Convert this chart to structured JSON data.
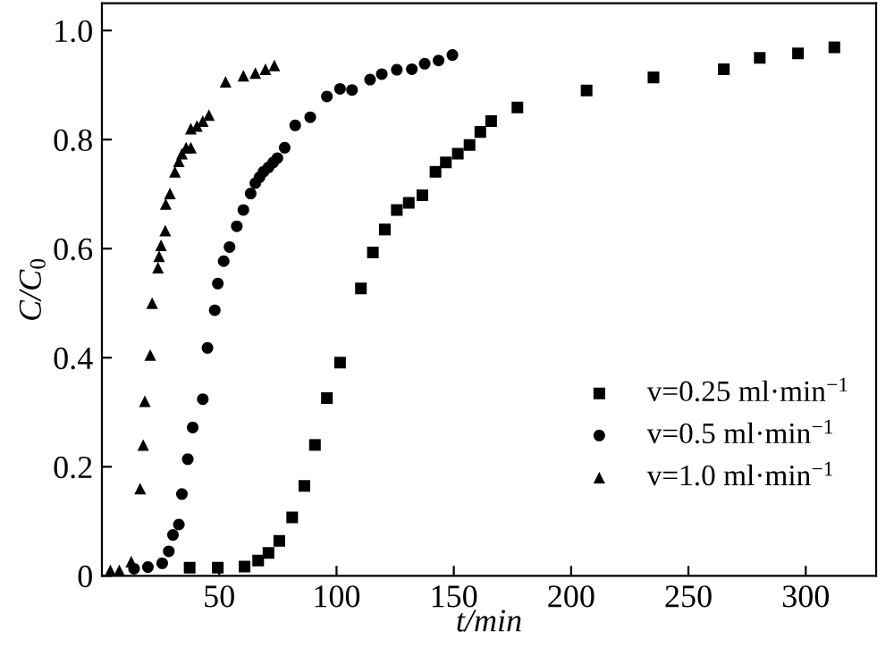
{
  "chart_data": {
    "type": "scatter",
    "xlabel": "t/min",
    "ylabel": "C/C$_{0}$",
    "xlim": [
      0,
      330
    ],
    "xticks": [
      50,
      100,
      150,
      200,
      250,
      300
    ],
    "ylim": [
      0,
      1.05
    ],
    "yticks": [
      0,
      0.2,
      0.4,
      0.6,
      0.8,
      {
        "value": 1.0,
        "label": "1.0"
      }
    ],
    "grid": false,
    "legend": "bottom right",
    "series": [
      {
        "name": "v=0.25 ml·min$^{−1}$",
        "color": "#000000",
        "marker": "square",
        "x": [
          37.4,
          49.4,
          60.8,
          66.6,
          71.0,
          75.6,
          81.1,
          86.3,
          90.8,
          95.9,
          101.5,
          110.4,
          115.5,
          120.6,
          125.7,
          130.8,
          136.6,
          142.2,
          146.6,
          151.7,
          156.7,
          161.3,
          165.9,
          177.1,
          206.6,
          235.1,
          265.1,
          280.4,
          296.7,
          312.2
        ],
        "values": [
          0.015,
          0.015,
          0.017,
          0.028,
          0.042,
          0.064,
          0.107,
          0.165,
          0.24,
          0.326,
          0.391,
          0.527,
          0.593,
          0.635,
          0.671,
          0.684,
          0.698,
          0.741,
          0.758,
          0.774,
          0.79,
          0.814,
          0.834,
          0.859,
          0.89,
          0.914,
          0.929,
          0.95,
          0.958,
          0.969
        ]
      },
      {
        "name": "v=0.5 ml·min$^{−1}$",
        "color": "#000000",
        "marker": "circle",
        "x": [
          13.7,
          19.6,
          25.7,
          28.5,
          30.3,
          32.8,
          34.1,
          36.6,
          38.7,
          43.0,
          45.0,
          48.1,
          49.4,
          51.9,
          54.4,
          57.5,
          60.3,
          63.4,
          65.4,
          67.2,
          68.9,
          71.0,
          73.0,
          74.8,
          77.9,
          82.4,
          88.8,
          95.9,
          101.5,
          106.6,
          114.3,
          119.3,
          125.7,
          132.1,
          137.6,
          143.5,
          149.4
        ],
        "values": [
          0.013,
          0.016,
          0.023,
          0.045,
          0.075,
          0.094,
          0.15,
          0.214,
          0.272,
          0.324,
          0.418,
          0.487,
          0.536,
          0.577,
          0.603,
          0.641,
          0.671,
          0.701,
          0.72,
          0.731,
          0.741,
          0.749,
          0.758,
          0.766,
          0.785,
          0.826,
          0.841,
          0.879,
          0.893,
          0.891,
          0.91,
          0.92,
          0.928,
          0.929,
          0.939,
          0.945,
          0.955
        ]
      },
      {
        "name": "v=1.0 ml·min$^{−1}$",
        "color": "#000000",
        "marker": "triangle",
        "x": [
          3.6,
          7.4,
          12.5,
          16.3,
          17.6,
          18.3,
          20.6,
          21.4,
          23.9,
          24.4,
          25.2,
          27.0,
          27.2,
          29.0,
          31.1,
          32.8,
          34.1,
          35.9,
          37.9,
          37.9,
          40.5,
          43.0,
          45.6,
          52.7,
          60.3,
          65.4,
          69.7,
          73.5
        ],
        "values": [
          0.01,
          0.01,
          0.026,
          0.16,
          0.24,
          0.32,
          0.405,
          0.5,
          0.565,
          0.586,
          0.606,
          0.633,
          0.682,
          0.701,
          0.741,
          0.76,
          0.774,
          0.785,
          0.785,
          0.82,
          0.825,
          0.834,
          0.845,
          0.906,
          0.917,
          0.922,
          0.929,
          0.936
        ]
      }
    ]
  }
}
